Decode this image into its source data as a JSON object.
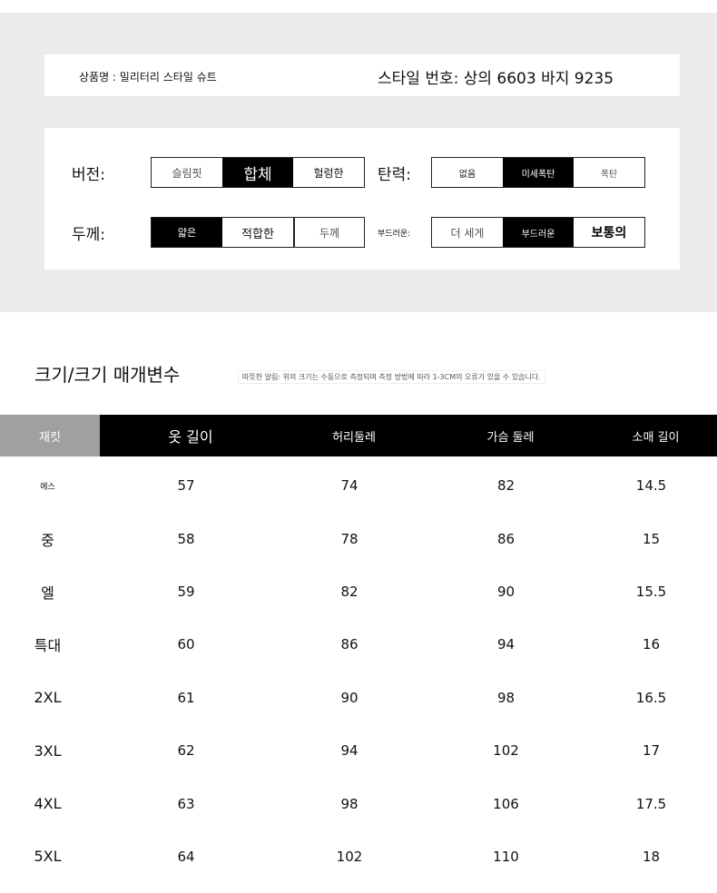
{
  "product": {
    "name": "상품명 : 밀리터리 스타일 슈트",
    "style_no": "스타일 번호: 상의 6603 바지 9235"
  },
  "attributes": [
    {
      "label": "버전:",
      "options": [
        "슬림핏",
        "합체",
        "헐렁한"
      ],
      "selected": 1
    },
    {
      "label": "탄력:",
      "options": [
        "없음",
        "미세폭탄",
        "폭탄"
      ],
      "selected": 1
    },
    {
      "label": "두께:",
      "options": [
        "얇은",
        "적합한",
        "두께"
      ],
      "selected": 0
    },
    {
      "label": "부드러운:",
      "options": [
        "더 세게",
        "부드러운",
        "보통의"
      ],
      "selected": 1
    }
  ],
  "size_section": {
    "title": "크기/크기 매개변수",
    "note": "따뜻한 알림: 위의 크기는 수동으로 측정되며 측정 방법에 따라 1-3CM의 오류가 있을 수 있습니다."
  },
  "table": {
    "headers": [
      "재킷",
      "옷 길이",
      "허리둘레",
      "가슴 둘레",
      "소매 길이"
    ],
    "rows": [
      [
        "에스",
        "57",
        "74",
        "82",
        "14.5"
      ],
      [
        "중",
        "58",
        "78",
        "86",
        "15"
      ],
      [
        "엘",
        "59",
        "82",
        "90",
        "15.5"
      ],
      [
        "특대",
        "60",
        "86",
        "94",
        "16"
      ],
      [
        "2XL",
        "61",
        "90",
        "98",
        "16.5"
      ],
      [
        "3XL",
        "62",
        "94",
        "102",
        "17"
      ],
      [
        "4XL",
        "63",
        "98",
        "106",
        "17.5"
      ],
      [
        "5XL",
        "64",
        "102",
        "110",
        "18"
      ]
    ]
  },
  "colors": {
    "panel_bg": "#ebebeb",
    "header_bg": "#000000",
    "first_header_bg": "#a0a0a0"
  }
}
